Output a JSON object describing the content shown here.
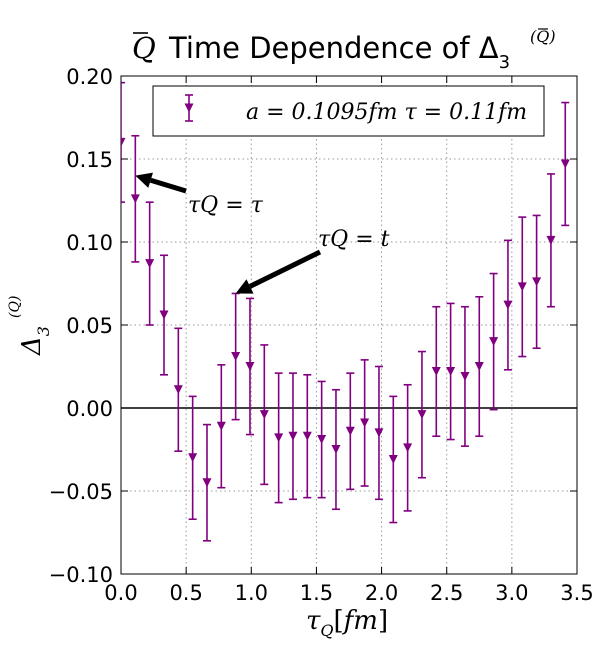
{
  "chart_data": {
    "type": "scatter",
    "title": "Q̄ Time Dependence of Δ₃^(Q̄)",
    "xlabel": "τQ[fm]",
    "ylabel": "Δ₃^(Q̄)",
    "xlim": [
      0.0,
      3.5
    ],
    "ylim": [
      -0.1,
      0.2
    ],
    "xticks": [
      "0.0",
      "0.5",
      "1.0",
      "1.5",
      "2.0",
      "2.5",
      "3.0",
      "3.5"
    ],
    "yticks": [
      "0.20",
      "0.15",
      "0.10",
      "0.05",
      "0.00",
      "−0.05",
      "−0.10"
    ],
    "grid": true,
    "legend_position": "top-right",
    "color": "#800080",
    "series": [
      {
        "name": "a = 0.1095fm  τ = 0.11fm",
        "x": [
          0.0,
          0.11,
          0.22,
          0.33,
          0.44,
          0.55,
          0.66,
          0.77,
          0.88,
          0.99,
          1.1,
          1.21,
          1.32,
          1.43,
          1.54,
          1.65,
          1.76,
          1.87,
          1.98,
          2.09,
          2.2,
          2.31,
          2.42,
          2.53,
          2.64,
          2.75,
          2.86,
          2.97,
          3.08,
          3.19,
          3.3,
          3.41
        ],
        "y": [
          0.16,
          0.126,
          0.087,
          0.056,
          0.011,
          -0.03,
          -0.045,
          -0.011,
          0.031,
          0.025,
          -0.004,
          -0.018,
          -0.017,
          -0.017,
          -0.019,
          -0.025,
          -0.014,
          -0.009,
          -0.015,
          -0.031,
          -0.024,
          -0.004,
          0.022,
          0.022,
          0.019,
          0.025,
          0.04,
          0.062,
          0.073,
          0.076,
          0.101,
          0.147
        ],
        "err": [
          0.036,
          0.038,
          0.037,
          0.036,
          0.037,
          0.037,
          0.035,
          0.037,
          0.038,
          0.041,
          0.042,
          0.039,
          0.038,
          0.037,
          0.035,
          0.036,
          0.035,
          0.038,
          0.04,
          0.038,
          0.038,
          0.038,
          0.039,
          0.041,
          0.042,
          0.042,
          0.041,
          0.039,
          0.042,
          0.04,
          0.04,
          0.037
        ]
      }
    ],
    "annotations": [
      {
        "text": "τQ = τ",
        "points_to": [
          0.11,
          0.14
        ]
      },
      {
        "text": "τQ = t",
        "points_to": [
          0.88,
          0.069
        ]
      }
    ]
  }
}
